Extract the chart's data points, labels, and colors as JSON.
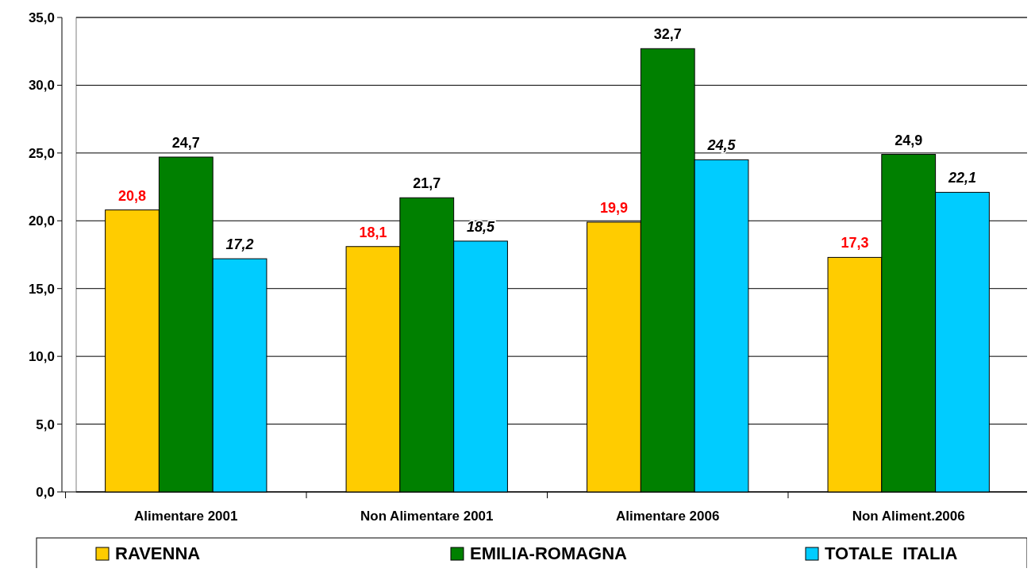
{
  "chart_data": {
    "type": "bar",
    "categories": [
      "Alimentare 2001",
      "Non Alimentare 2001",
      "Alimentare 2006",
      "Non Aliment.2006"
    ],
    "series": [
      {
        "name": "RAVENNA",
        "color": "#ffcc00",
        "values": [
          20.8,
          18.1,
          19.9,
          17.3
        ]
      },
      {
        "name": "EMILIA-ROMAGNA",
        "color": "#008000",
        "values": [
          24.7,
          21.7,
          32.7,
          24.9
        ]
      },
      {
        "name": "TOTALE  ITALIA",
        "color": "#00ccff",
        "values": [
          17.2,
          18.5,
          24.5,
          22.1
        ]
      }
    ],
    "ylim": [
      0,
      35
    ],
    "yticks": [
      {
        "value": 0,
        "label": "0,0"
      },
      {
        "value": 5,
        "label": "5,0"
      },
      {
        "value": 10,
        "label": "10,0"
      },
      {
        "value": 15,
        "label": "15,0"
      },
      {
        "value": 20,
        "label": "20,0"
      },
      {
        "value": 25,
        "label": "25,0"
      },
      {
        "value": 30,
        "label": "30,0"
      },
      {
        "value": 35,
        "label": "35,0"
      }
    ],
    "value_labels": [
      [
        "20,8",
        "18,1",
        "19,9",
        "17,3"
      ],
      [
        "24,7",
        "21,7",
        "32,7",
        "24,9"
      ],
      [
        "17,2",
        "18,5",
        "24,5",
        "22,1"
      ]
    ],
    "grid": "y",
    "legend": "bottom"
  }
}
